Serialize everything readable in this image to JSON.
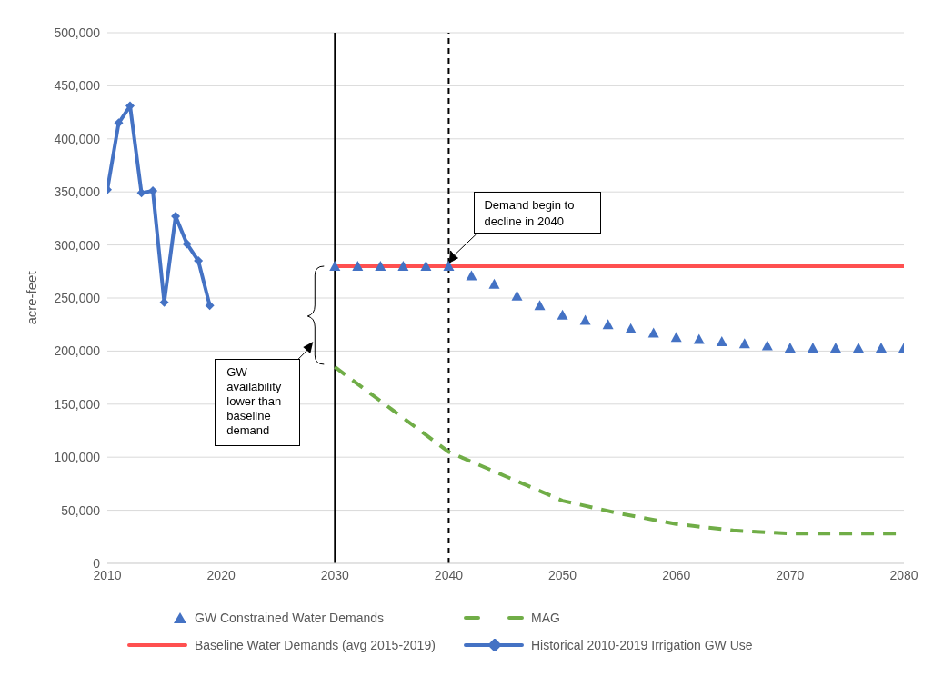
{
  "chart_data": {
    "type": "line",
    "ylabel": "acre-feet",
    "xlim": [
      2010,
      2080
    ],
    "xticks": [
      2010,
      2020,
      2030,
      2040,
      2050,
      2060,
      2070,
      2080
    ],
    "ylim": [
      0,
      500000
    ],
    "yticks": [
      0,
      {
        "value": 50000,
        "label": "50,000"
      },
      {
        "value": 100000,
        "label": "100,000"
      },
      {
        "value": 150000,
        "label": "150,000"
      },
      {
        "value": 200000,
        "label": "200,000"
      },
      {
        "value": 250000,
        "label": "250,000"
      },
      {
        "value": 300000,
        "label": "300,000"
      },
      {
        "value": 350000,
        "label": "350,000"
      },
      {
        "value": 400000,
        "label": "400,000"
      },
      {
        "value": 450000,
        "label": "450,000"
      },
      {
        "value": 500000,
        "label": "500,000"
      }
    ],
    "grid": "y",
    "legend": "bottom",
    "series": [
      {
        "name": "GW Constrained Water Demands",
        "type": "scatter",
        "marker": "triangle",
        "color": "#4472c4",
        "x": [
          2030,
          2032,
          2034,
          2036,
          2038,
          2040,
          2042,
          2044,
          2046,
          2048,
          2050,
          2052,
          2054,
          2056,
          2058,
          2060,
          2062,
          2064,
          2066,
          2068,
          2070,
          2072,
          2074,
          2076,
          2078,
          2080
        ],
        "values": [
          280000,
          280000,
          280000,
          280000,
          280000,
          280000,
          271000,
          263000,
          252000,
          243000,
          234000,
          229000,
          225000,
          221000,
          217000,
          213000,
          211000,
          209000,
          207000,
          205000,
          203000,
          203000,
          203000,
          203000,
          203000,
          203000
        ]
      },
      {
        "name": "MAG",
        "type": "line",
        "line_style": "dashed",
        "marker": "none",
        "color": "#70ad47",
        "x": [
          2030,
          2035,
          2040,
          2045,
          2050,
          2055,
          2060,
          2065,
          2070,
          2075,
          2080
        ],
        "values": [
          185000,
          145000,
          105000,
          82000,
          59000,
          47000,
          37000,
          31000,
          28000,
          28000,
          28000
        ]
      },
      {
        "name": "Baseline Water Demands (avg 2015-2019)",
        "type": "line",
        "line_style": "solid",
        "marker": "none",
        "color": "#ff5050",
        "x": [
          2030,
          2080
        ],
        "values": [
          280000,
          280000
        ]
      },
      {
        "name": "Historical 2010-2019 Irrigation GW Use",
        "type": "line",
        "line_style": "solid",
        "marker": "diamond",
        "color": "#4472c4",
        "x": [
          2010,
          2011,
          2012,
          2013,
          2014,
          2015,
          2016,
          2017,
          2018,
          2019
        ],
        "values": [
          352000,
          415000,
          431000,
          349000,
          351000,
          246000,
          327000,
          301000,
          285000,
          243000
        ]
      }
    ],
    "ref_lines": [
      {
        "axis": "x",
        "value": 2030,
        "color": "#000000",
        "line_style": "solid"
      },
      {
        "axis": "x",
        "value": 2040,
        "color": "#000000",
        "line_style": "dashed"
      }
    ],
    "annotations": [
      "Demand begin to decline in 2040",
      "GW availability lower than baseline demand"
    ]
  }
}
